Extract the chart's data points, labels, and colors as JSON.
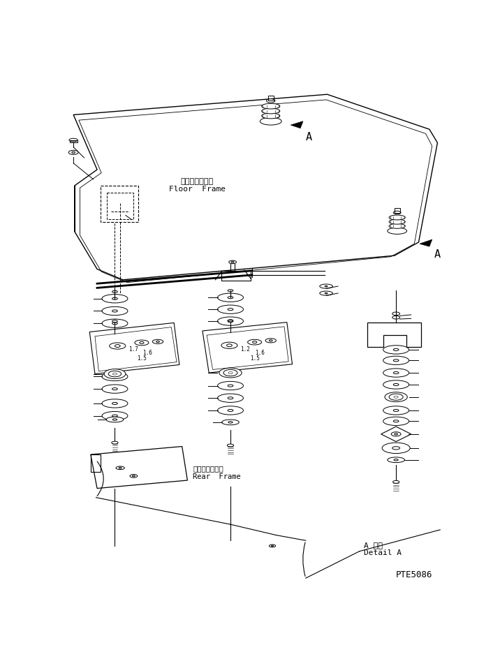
{
  "bg_color": "#ffffff",
  "line_color": "#000000",
  "title_bottom_right": "PTE5086",
  "label_floor_frame_jp": "フロアフレーム",
  "label_floor_frame_en": "Floor  Frame",
  "label_rear_frame_jp": "リヤーフレーム",
  "label_rear_frame_en": "Rear  Frame",
  "label_detail_jp": "A 詳細",
  "label_detail_en": "Detail A",
  "label_A1": "A",
  "label_A2": "A"
}
